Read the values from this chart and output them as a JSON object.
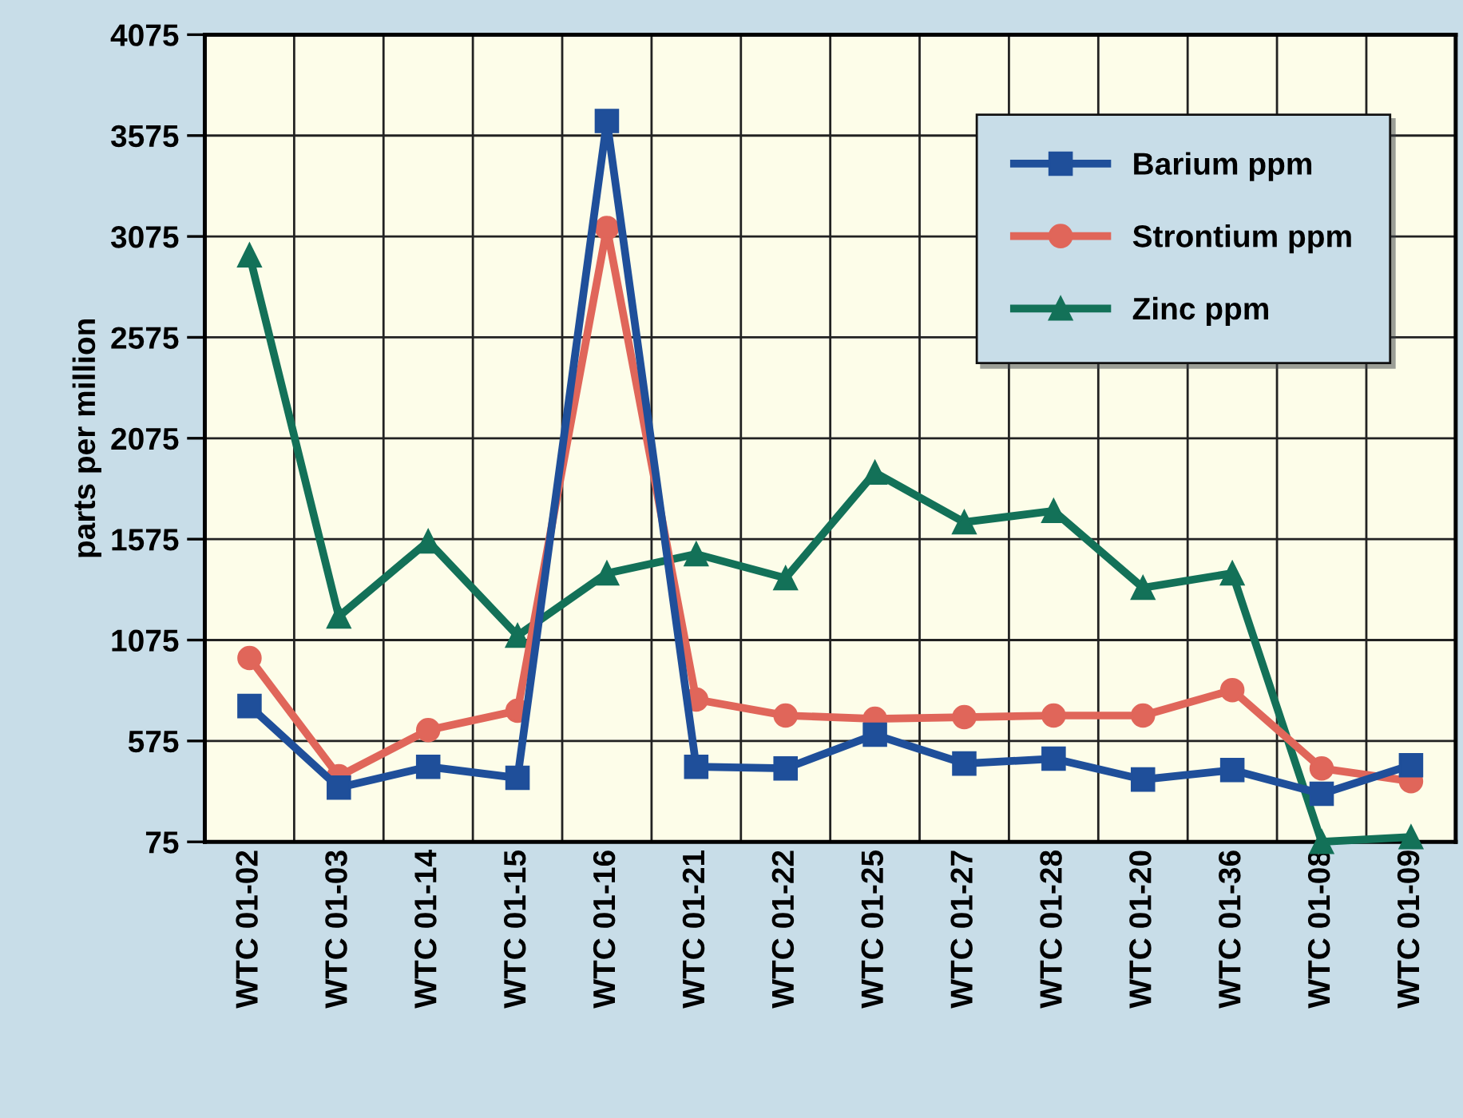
{
  "chart_data": {
    "type": "line",
    "ylabel": "parts per million",
    "categories": [
      "WTC 01-02",
      "WTC 01-03",
      "WTC 01-14",
      "WTC 01-15",
      "WTC 01-16",
      "WTC 01-21",
      "WTC 01-22",
      "WTC 01-25",
      "WTC 01-27",
      "WTC 01-28",
      "WTC 01-20",
      "WTC 01-36",
      "WTC 01-08",
      "WTC 01-09"
    ],
    "series": [
      {
        "name": "Barium ppm",
        "color": "#1f4f9a",
        "marker": "square",
        "values": [
          748,
          344,
          447,
          392,
          3647,
          447,
          439,
          606,
          463,
          487,
          384,
          431,
          313,
          455
        ]
      },
      {
        "name": "Strontium ppm",
        "color": "#e0665a",
        "marker": "circle",
        "values": [
          986,
          400,
          629,
          725,
          3117,
          780,
          701,
          685,
          693,
          701,
          701,
          827,
          439,
          376
        ]
      },
      {
        "name": "Zinc ppm",
        "color": "#137158",
        "marker": "triangle",
        "values": [
          2982,
          1192,
          1564,
          1097,
          1406,
          1501,
          1382,
          1905,
          1659,
          1715,
          1334,
          1406,
          75,
          99
        ]
      }
    ],
    "ylim": [
      75,
      4075
    ],
    "yticks": [
      75,
      575,
      1075,
      1575,
      2075,
      2575,
      3075,
      3575,
      4075
    ],
    "grid": true,
    "legend": "top right",
    "line_style": "solid"
  }
}
